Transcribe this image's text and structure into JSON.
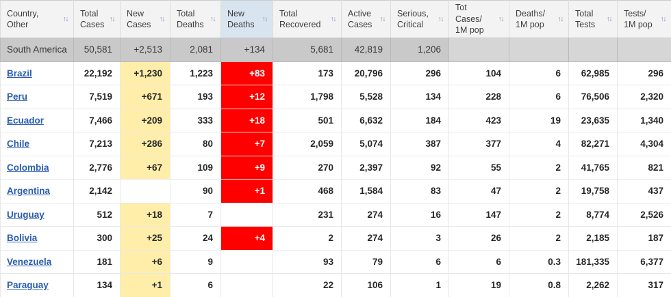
{
  "icons": {
    "sort": "↑↓"
  },
  "colors": {
    "header_bg": "#F3F3F4",
    "sorted_header_bg": "#D9E4F1",
    "continent_bg": "#C9C9C9",
    "new_cases_bg": "#FFEEAA",
    "new_deaths_bg": "#FF0000",
    "link_color": "#2A5DB0"
  },
  "table": {
    "columns": [
      {
        "key": "country",
        "label": "Country,\nOther"
      },
      {
        "key": "total_cases",
        "label": "Total\nCases"
      },
      {
        "key": "new_cases",
        "label": "New\nCases"
      },
      {
        "key": "total_deaths",
        "label": "Total\nDeaths"
      },
      {
        "key": "new_deaths",
        "label": "New\nDeaths",
        "sorted": true
      },
      {
        "key": "total_recovered",
        "label": "Total\nRecovered"
      },
      {
        "key": "active_cases",
        "label": "Active\nCases"
      },
      {
        "key": "serious_critical",
        "label": "Serious,\nCritical"
      },
      {
        "key": "tot_cases_1m",
        "label": "Tot Cases/\n1M pop"
      },
      {
        "key": "deaths_1m",
        "label": "Deaths/\n1M pop"
      },
      {
        "key": "total_tests",
        "label": "Total\nTests"
      },
      {
        "key": "tests_1m",
        "label": "Tests/\n1M pop"
      }
    ],
    "rows": [
      {
        "type": "continent",
        "country": "South America",
        "cells": [
          "50,581",
          "+2,513",
          "2,081",
          "+134",
          "5,681",
          "42,819",
          "1,206",
          "",
          "",
          "",
          ""
        ]
      },
      {
        "type": "country",
        "country": "Brazil",
        "cells": [
          "22,192",
          "+1,230",
          "1,223",
          "+83",
          "173",
          "20,796",
          "296",
          "104",
          "6",
          "62,985",
          "296"
        ]
      },
      {
        "type": "country",
        "country": "Peru",
        "cells": [
          "7,519",
          "+671",
          "193",
          "+12",
          "1,798",
          "5,528",
          "134",
          "228",
          "6",
          "76,506",
          "2,320"
        ]
      },
      {
        "type": "country",
        "country": "Ecuador",
        "cells": [
          "7,466",
          "+209",
          "333",
          "+18",
          "501",
          "6,632",
          "184",
          "423",
          "19",
          "23,635",
          "1,340"
        ]
      },
      {
        "type": "country",
        "country": "Chile",
        "cells": [
          "7,213",
          "+286",
          "80",
          "+7",
          "2,059",
          "5,074",
          "387",
          "377",
          "4",
          "82,271",
          "4,304"
        ]
      },
      {
        "type": "country",
        "country": "Colombia",
        "cells": [
          "2,776",
          "+67",
          "109",
          "+9",
          "270",
          "2,397",
          "92",
          "55",
          "2",
          "41,765",
          "821"
        ]
      },
      {
        "type": "country",
        "country": "Argentina",
        "cells": [
          "2,142",
          "",
          "90",
          "+1",
          "468",
          "1,584",
          "83",
          "47",
          "2",
          "19,758",
          "437"
        ]
      },
      {
        "type": "country",
        "country": "Uruguay",
        "cells": [
          "512",
          "+18",
          "7",
          "",
          "231",
          "274",
          "16",
          "147",
          "2",
          "8,774",
          "2,526"
        ]
      },
      {
        "type": "country",
        "country": "Bolivia",
        "cells": [
          "300",
          "+25",
          "24",
          "+4",
          "2",
          "274",
          "3",
          "26",
          "2",
          "2,185",
          "187"
        ]
      },
      {
        "type": "country",
        "country": "Venezuela",
        "cells": [
          "181",
          "+6",
          "9",
          "",
          "93",
          "79",
          "6",
          "6",
          "0.3",
          "181,335",
          "6,377"
        ]
      },
      {
        "type": "country",
        "country": "Paraguay",
        "cells": [
          "134",
          "+1",
          "6",
          "",
          "22",
          "106",
          "1",
          "19",
          "0.8",
          "2,262",
          "317"
        ]
      }
    ]
  }
}
